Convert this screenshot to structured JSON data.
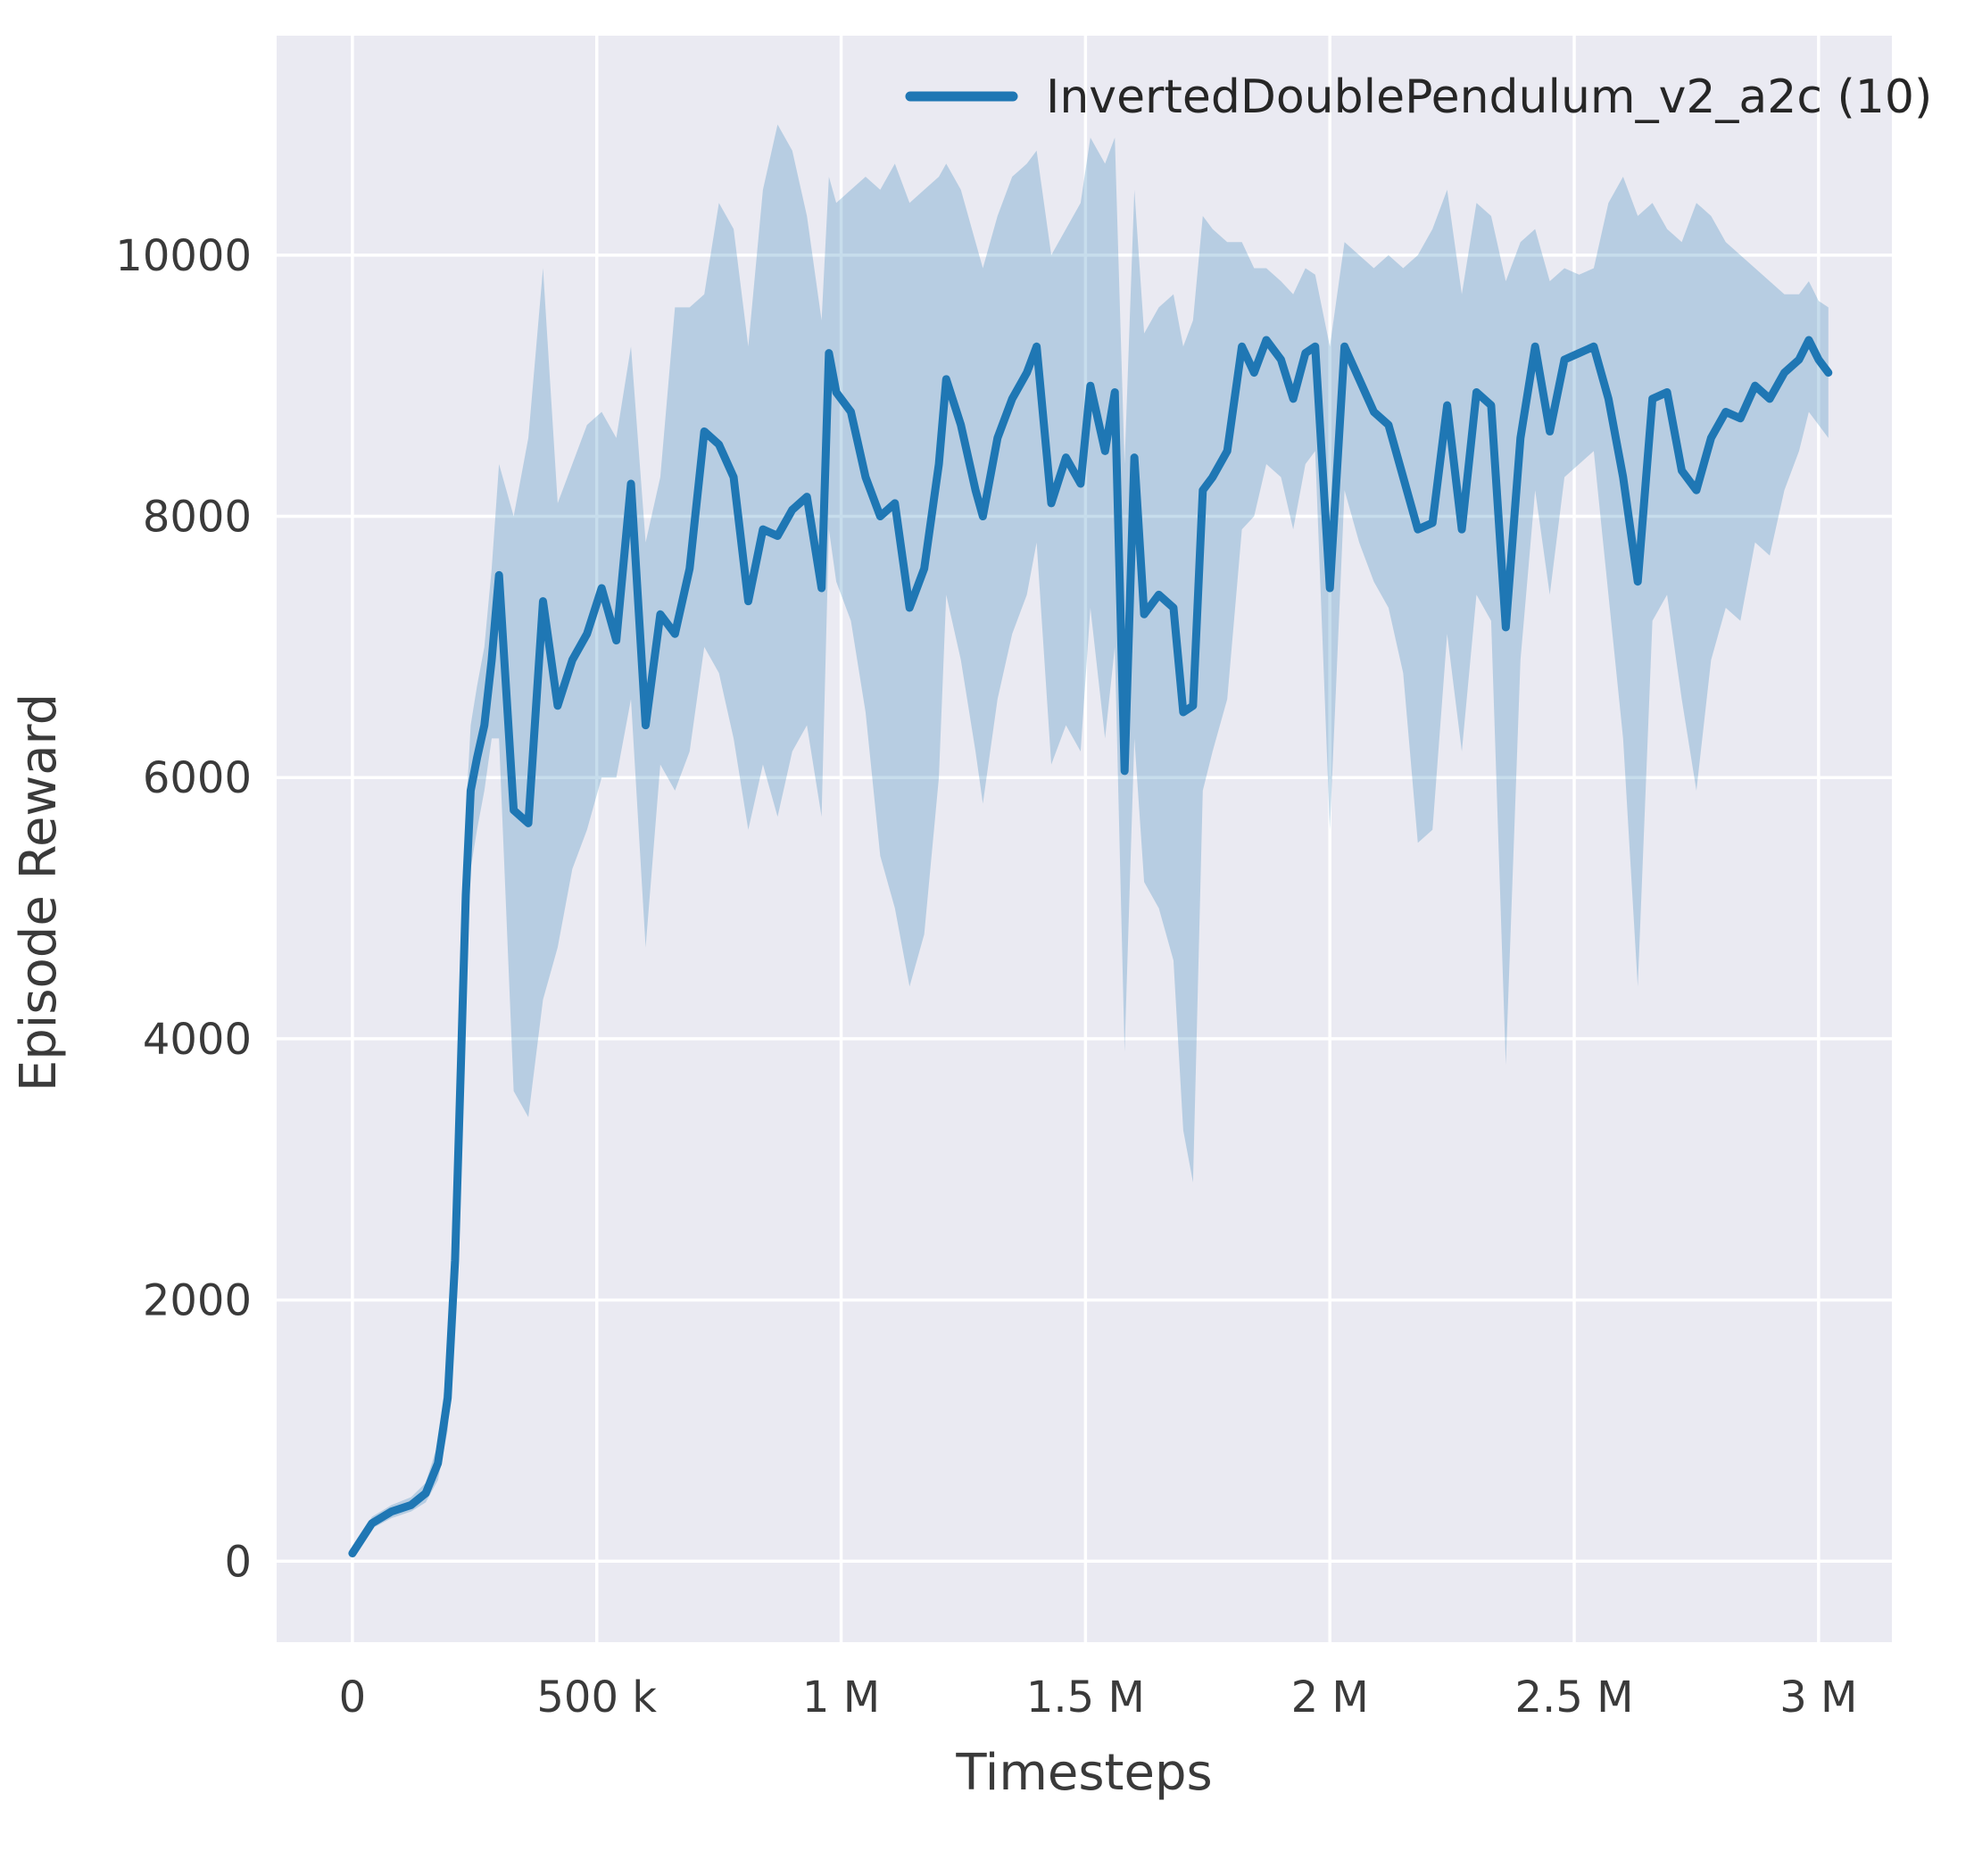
{
  "chart_data": {
    "type": "line",
    "title": "",
    "xlabel": "Timesteps",
    "ylabel": "Episode Reward",
    "grid": true,
    "panel_color": "#eaeaf2",
    "grid_color": "#ffffff",
    "legend_position": "upper right",
    "xlim": [
      -155000,
      3150000
    ],
    "ylim": [
      -620,
      11680
    ],
    "xticks": [
      {
        "v": 0,
        "label": "0"
      },
      {
        "v": 500000,
        "label": "500 k"
      },
      {
        "v": 1000000,
        "label": "1 M"
      },
      {
        "v": 1500000,
        "label": "1.5 M"
      },
      {
        "v": 2000000,
        "label": "2 M"
      },
      {
        "v": 2500000,
        "label": "2.5 M"
      },
      {
        "v": 3000000,
        "label": "3 M"
      }
    ],
    "yticks": [
      {
        "v": 0,
        "label": "0"
      },
      {
        "v": 2000,
        "label": "2000"
      },
      {
        "v": 4000,
        "label": "4000"
      },
      {
        "v": 6000,
        "label": "6000"
      },
      {
        "v": 8000,
        "label": "8000"
      },
      {
        "v": 10000,
        "label": "10000"
      }
    ],
    "series": [
      {
        "name": "InvertedDoublePendulum_v2_a2c (10)",
        "color": "#1f77b4",
        "band_color": "#1f77b4",
        "band_opacity": 0.25,
        "x_unit": "timesteps (values below are in thousands)",
        "x_scale": 1000,
        "point_format": [
          "x_thousands",
          "mean",
          "band_low",
          "band_high"
        ],
        "points": [
          [
            0,
            60,
            40,
            90
          ],
          [
            40,
            290,
            250,
            340
          ],
          [
            80,
            380,
            330,
            430
          ],
          [
            120,
            430,
            380,
            490
          ],
          [
            150,
            520,
            450,
            600
          ],
          [
            175,
            750,
            620,
            900
          ],
          [
            195,
            1250,
            1000,
            1550
          ],
          [
            210,
            2300,
            1900,
            2800
          ],
          [
            222,
            3800,
            3300,
            4400
          ],
          [
            232,
            5100,
            4500,
            5700
          ],
          [
            242,
            5900,
            5300,
            6400
          ],
          [
            255,
            6150,
            5600,
            6700
          ],
          [
            270,
            6400,
            5900,
            7000
          ],
          [
            285,
            6900,
            6300,
            7600
          ],
          [
            300,
            7550,
            6300,
            8400
          ],
          [
            330,
            5750,
            3600,
            8000
          ],
          [
            360,
            5650,
            3400,
            8600
          ],
          [
            390,
            7350,
            4300,
            9900
          ],
          [
            420,
            6550,
            4700,
            8100
          ],
          [
            450,
            6900,
            5300,
            8400
          ],
          [
            480,
            7100,
            5600,
            8700
          ],
          [
            510,
            7450,
            6000,
            8800
          ],
          [
            540,
            7050,
            6000,
            8600
          ],
          [
            570,
            8250,
            6600,
            9300
          ],
          [
            600,
            6400,
            4700,
            7800
          ],
          [
            630,
            7250,
            6100,
            8300
          ],
          [
            660,
            7100,
            5900,
            9600
          ],
          [
            690,
            7600,
            6200,
            9600
          ],
          [
            720,
            8650,
            7000,
            9700
          ],
          [
            750,
            8550,
            6800,
            10400
          ],
          [
            780,
            8300,
            6300,
            10200
          ],
          [
            810,
            7350,
            5600,
            9300
          ],
          [
            840,
            7900,
            6100,
            10500
          ],
          [
            870,
            7850,
            5700,
            11000
          ],
          [
            900,
            8050,
            6200,
            10800
          ],
          [
            930,
            8150,
            6400,
            10300
          ],
          [
            960,
            7450,
            5700,
            9500
          ],
          [
            975,
            9250,
            7900,
            10600
          ],
          [
            990,
            8950,
            7500,
            10400
          ],
          [
            1020,
            8800,
            7200,
            10500
          ],
          [
            1050,
            8300,
            6500,
            10600
          ],
          [
            1080,
            8000,
            5400,
            10500
          ],
          [
            1110,
            8100,
            5000,
            10700
          ],
          [
            1140,
            7300,
            4400,
            10400
          ],
          [
            1170,
            7600,
            4800,
            10500
          ],
          [
            1200,
            8400,
            6000,
            10600
          ],
          [
            1215,
            9050,
            7400,
            10700
          ],
          [
            1245,
            8700,
            6900,
            10500
          ],
          [
            1275,
            8200,
            6200,
            10100
          ],
          [
            1290,
            8000,
            5800,
            9900
          ],
          [
            1320,
            8600,
            6600,
            10300
          ],
          [
            1350,
            8900,
            7100,
            10600
          ],
          [
            1380,
            9100,
            7400,
            10700
          ],
          [
            1400,
            9300,
            7800,
            10800
          ],
          [
            1430,
            8100,
            6100,
            10000
          ],
          [
            1460,
            8450,
            6400,
            10200
          ],
          [
            1490,
            8250,
            6200,
            10400
          ],
          [
            1510,
            9000,
            7300,
            10900
          ],
          [
            1540,
            8500,
            6300,
            10700
          ],
          [
            1560,
            8950,
            7000,
            10900
          ],
          [
            1580,
            6050,
            3900,
            8400
          ],
          [
            1600,
            8450,
            6300,
            10500
          ],
          [
            1620,
            7250,
            5200,
            9400
          ],
          [
            1650,
            7400,
            5000,
            9600
          ],
          [
            1680,
            7300,
            4600,
            9700
          ],
          [
            1700,
            6500,
            3300,
            9300
          ],
          [
            1720,
            6550,
            2900,
            9500
          ],
          [
            1740,
            8200,
            5900,
            10300
          ],
          [
            1760,
            8300,
            6200,
            10200
          ],
          [
            1790,
            8500,
            6600,
            10100
          ],
          [
            1820,
            9300,
            7900,
            10100
          ],
          [
            1845,
            9100,
            8000,
            9900
          ],
          [
            1870,
            9350,
            8400,
            9900
          ],
          [
            1900,
            9200,
            8300,
            9800
          ],
          [
            1925,
            8900,
            7900,
            9700
          ],
          [
            1950,
            9250,
            8400,
            9900
          ],
          [
            1970,
            9300,
            8500,
            9850
          ],
          [
            2000,
            7450,
            5600,
            9300
          ],
          [
            2030,
            9300,
            8200,
            10100
          ],
          [
            2060,
            9050,
            7800,
            10000
          ],
          [
            2090,
            8800,
            7500,
            9900
          ],
          [
            2120,
            8700,
            7300,
            10000
          ],
          [
            2150,
            8300,
            6800,
            9900
          ],
          [
            2180,
            7900,
            5500,
            10000
          ],
          [
            2210,
            7950,
            5600,
            10200
          ],
          [
            2240,
            8850,
            7100,
            10500
          ],
          [
            2270,
            7900,
            6200,
            9700
          ],
          [
            2300,
            8950,
            7400,
            10400
          ],
          [
            2330,
            8850,
            7200,
            10300
          ],
          [
            2360,
            7150,
            3800,
            9800
          ],
          [
            2390,
            8600,
            6900,
            10100
          ],
          [
            2420,
            9300,
            8200,
            10200
          ],
          [
            2450,
            8650,
            7400,
            9800
          ],
          [
            2480,
            9200,
            8300,
            9900
          ],
          [
            2510,
            9250,
            8400,
            9850
          ],
          [
            2540,
            9300,
            8500,
            9900
          ],
          [
            2570,
            8900,
            7400,
            10400
          ],
          [
            2600,
            8300,
            6300,
            10600
          ],
          [
            2630,
            7500,
            4400,
            10300
          ],
          [
            2660,
            8900,
            7200,
            10400
          ],
          [
            2690,
            8950,
            7400,
            10200
          ],
          [
            2720,
            8350,
            6600,
            10100
          ],
          [
            2750,
            8200,
            5900,
            10400
          ],
          [
            2780,
            8600,
            6900,
            10300
          ],
          [
            2810,
            8800,
            7300,
            10100
          ],
          [
            2840,
            8750,
            7200,
            10000
          ],
          [
            2870,
            9000,
            7800,
            9900
          ],
          [
            2900,
            8900,
            7700,
            9800
          ],
          [
            2930,
            9100,
            8200,
            9700
          ],
          [
            2960,
            9200,
            8500,
            9700
          ],
          [
            2980,
            9350,
            8800,
            9800
          ],
          [
            3000,
            9200,
            8700,
            9650
          ],
          [
            3020,
            9100,
            8600,
            9600
          ]
        ]
      }
    ]
  }
}
